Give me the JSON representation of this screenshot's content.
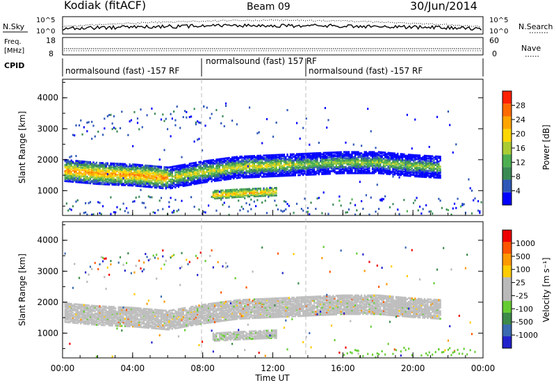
{
  "header": {
    "station": "Kodiak (fitACF)",
    "beam": "Beam 09",
    "date": "30/Jun/2014"
  },
  "noise_panel": {
    "left_label": "N.Sky",
    "left_ticks": [
      "10^5",
      "10^0"
    ],
    "right_ticks": [
      "10^5",
      "10^0"
    ],
    "right_label": "N.Search",
    "right_legend_line": "dotted"
  },
  "freq_panel": {
    "left_label_line1": "Freq.",
    "left_label_line2": "[MHz]",
    "left_ticks": [
      "18",
      "8"
    ],
    "right_ticks": [
      "60",
      "0"
    ],
    "right_label": "Nave",
    "right_legend_line": "dotted"
  },
  "cpid_panel": {
    "label": "CPID",
    "segments": [
      {
        "text": "normalsound (fast) -157 RF",
        "start": "00:00"
      },
      {
        "text": "normalsound (fast) 157 RF",
        "start": "08:00"
      },
      {
        "text": "normalsound (fast) -157 RF",
        "start": "14:00"
      }
    ]
  },
  "power_panel": {
    "ylabel": "Slant Range [km]",
    "yticks": [
      1000,
      2000,
      3000,
      4000
    ],
    "ylim": [
      200,
      4600
    ],
    "colorbar_label": "Power [dB]",
    "colorbar_ticks": [
      "28",
      "24",
      "20",
      "16",
      "12",
      "8",
      "4"
    ],
    "colors": [
      "#0000ff",
      "#2e57b8",
      "#3a8a54",
      "#4caf50",
      "#aacc33",
      "#ffd700",
      "#ffa500",
      "#ff6a00",
      "#ff2000"
    ]
  },
  "velocity_panel": {
    "ylabel": "Slant Range [km]",
    "yticks": [
      1000,
      2000,
      3000,
      4000
    ],
    "ylim": [
      200,
      4600
    ],
    "colorbar_label": "Velocity [m s⁻¹]",
    "colorbar_ticks": [
      "1000",
      "500",
      "100",
      "25",
      "-25",
      "-100",
      "-500",
      "-1000"
    ],
    "colors": [
      "#2222cc",
      "#3a6ab0",
      "#3c8a4a",
      "#66cc33",
      "#b9b9b9",
      "#b9b9b9",
      "#ffcc00",
      "#ff9900",
      "#ff5500",
      "#ee0000"
    ],
    "ground_scatter_color": "#bdbdbd"
  },
  "time_axis": {
    "xlabel": "Time UT",
    "ticks": [
      "00:00",
      "04:00",
      "08:00",
      "12:00",
      "16:00",
      "20:00",
      "00:00"
    ]
  },
  "chart_data": {
    "type": "heatmap",
    "description_source": "SuperDARN range-time-intensity plot",
    "x_range_hours": [
      0,
      24
    ],
    "y_range_km": [
      200,
      4600
    ],
    "power_bands": [
      {
        "t": [
          0,
          2,
          4,
          6,
          8,
          10,
          12,
          14,
          16,
          18,
          20,
          21.5
        ],
        "range_km": [
          1700,
          1600,
          1550,
          1450,
          1650,
          1800,
          1850,
          1900,
          1950,
          1950,
          1850,
          1800
        ],
        "peak_db": 24
      },
      {
        "t": [
          8.5,
          10,
          12
        ],
        "range_km": [
          900,
          950,
          1000
        ],
        "peak_db": 22
      },
      {
        "t": [
          0.5,
          4,
          7,
          9
        ],
        "range_km": [
          3000,
          3300,
          3400,
          3450
        ],
        "peak_db": 8
      }
    ],
    "velocity_dominant": "ground scatter (-25 to 25 m/s)"
  }
}
